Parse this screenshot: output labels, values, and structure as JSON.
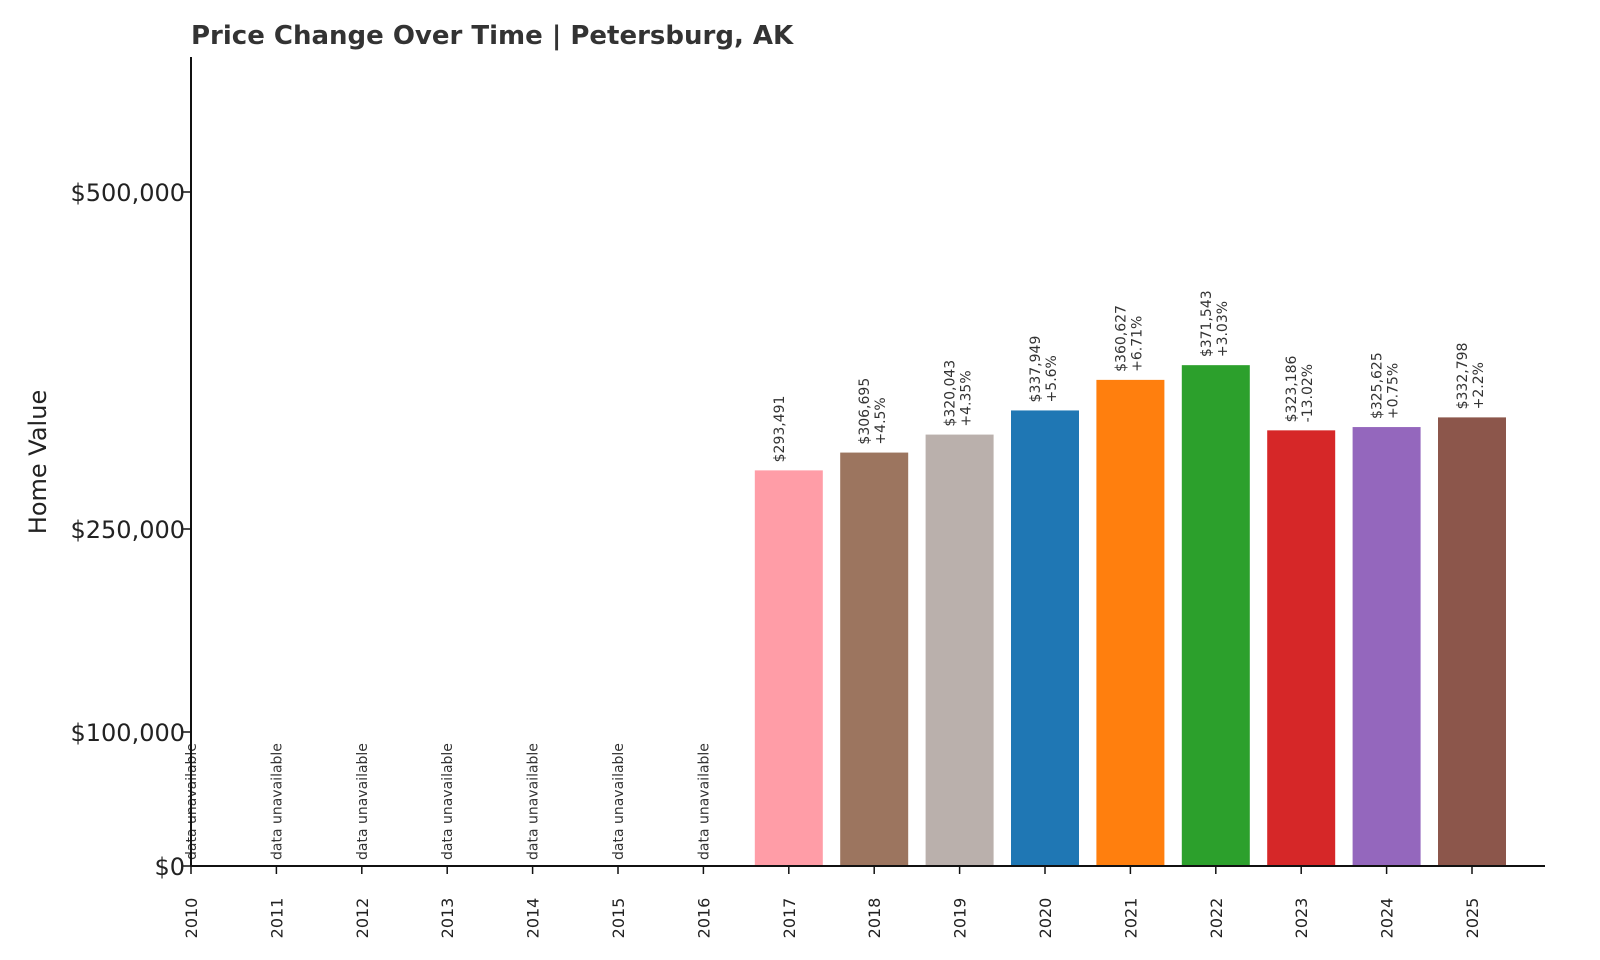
{
  "chart_data": {
    "type": "bar",
    "title": "Price Change Over Time | Petersburg, AK",
    "xlabel": "",
    "ylabel": "Home Value",
    "yticks": [
      {
        "value": 0,
        "label": "$0"
      },
      {
        "value": 100000,
        "label": "$100,000"
      },
      {
        "value": 250000,
        "label": "$250,000"
      },
      {
        "value": 500000,
        "label": "$500,000"
      }
    ],
    "ylim": [
      0,
      600000
    ],
    "missing_label": "data unavailable",
    "categories": [
      "2010",
      "2011",
      "2012",
      "2013",
      "2014",
      "2015",
      "2016",
      "2017",
      "2018",
      "2019",
      "2020",
      "2021",
      "2022",
      "2023",
      "2024",
      "2025"
    ],
    "values": [
      null,
      null,
      null,
      null,
      null,
      null,
      null,
      293491,
      306695,
      320043,
      337949,
      360627,
      371543,
      323186,
      325625,
      332798
    ],
    "value_labels": [
      "",
      "",
      "",
      "",
      "",
      "",
      "",
      "$293,491",
      "$306,695",
      "$320,043",
      "$337,949",
      "$360,627",
      "$371,543",
      "$323,186",
      "$325,625",
      "$332,798"
    ],
    "change_labels": [
      "",
      "",
      "",
      "",
      "",
      "",
      "",
      "",
      "+4.5%",
      "+4.35%",
      "+5.6%",
      "+6.71%",
      "+3.03%",
      "-13.02%",
      "+0.75%",
      "+2.2%"
    ],
    "colors": [
      "#ff9da7",
      "#ff9da7",
      "#ff9da7",
      "#ff9da7",
      "#ff9da7",
      "#ff9da7",
      "#ff9da7",
      "#ff9da7",
      "#9c755f",
      "#bab0ac",
      "#1f77b4",
      "#ff7f0e",
      "#2ca02c",
      "#d62728",
      "#9467bd",
      "#8c564b"
    ],
    "grid": false
  }
}
